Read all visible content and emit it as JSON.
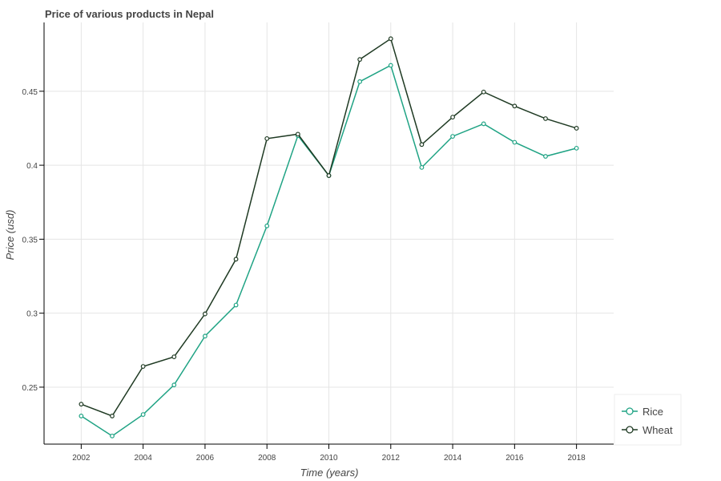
{
  "chart_data": {
    "type": "line",
    "title": "Price of various products in Nepal",
    "xlabel": "Time (years)",
    "ylabel": "Price (usd)",
    "x": [
      2002,
      2003,
      2004,
      2005,
      2006,
      2007,
      2008,
      2009,
      2010,
      2011,
      2012,
      2013,
      2014,
      2015,
      2016,
      2017,
      2018
    ],
    "xlim": [
      2000.8,
      2019.2
    ],
    "ylim": [
      0.2115,
      0.4965
    ],
    "x_ticks": [
      2002,
      2004,
      2006,
      2008,
      2010,
      2012,
      2014,
      2016,
      2018
    ],
    "y_ticks": [
      0.25,
      0.3,
      0.35,
      0.4,
      0.45
    ],
    "y_tick_labels": [
      "0.25",
      "0.3",
      "0.35",
      "0.4",
      "0.45"
    ],
    "grid": true,
    "legend_position": "bottom-right",
    "series": [
      {
        "name": "Rice",
        "color": "#1fa384",
        "values": [
          0.2305,
          0.217,
          0.2315,
          0.2515,
          0.2845,
          0.3055,
          0.359,
          0.42,
          0.393,
          0.4565,
          0.4675,
          0.3985,
          0.4195,
          0.428,
          0.4155,
          0.406,
          0.4115
        ]
      },
      {
        "name": "Wheat",
        "color": "#1f3a23",
        "values": [
          0.2385,
          0.2305,
          0.264,
          0.2705,
          0.2995,
          0.3365,
          0.418,
          0.421,
          0.393,
          0.4715,
          0.4855,
          0.414,
          0.4325,
          0.4495,
          0.44,
          0.4315,
          0.425
        ]
      }
    ]
  }
}
